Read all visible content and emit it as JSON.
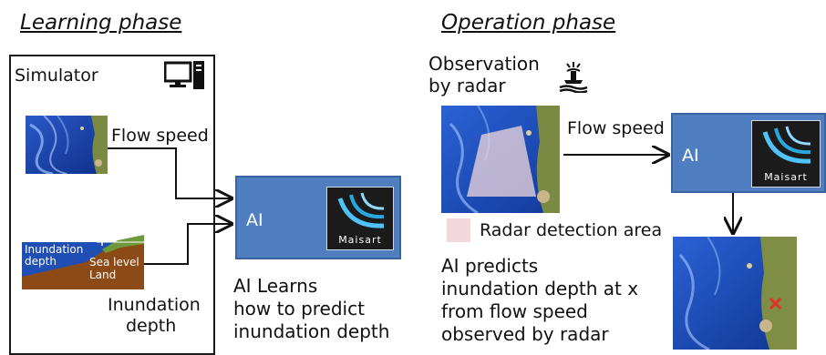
{
  "learning": {
    "heading": "Learning phase",
    "simulator_label": "Simulator",
    "flow_speed_label": "Flow speed",
    "terrain_depth_label": "Inundation depth",
    "terrain_sea_label": "Sea level",
    "terrain_land_label": "Land",
    "inundation_depth_label_line1": "Inundation",
    "inundation_depth_label_line2": "depth",
    "ai_label": "AI",
    "logo_text": "Maisart",
    "ai_learns_line1": "AI Learns",
    "ai_learns_line2": "how to predict",
    "ai_learns_line3": "inundation depth"
  },
  "operation": {
    "heading": "Operation phase",
    "observation_line1": "Observation",
    "observation_line2": "by radar",
    "flow_speed_label": "Flow speed",
    "ai_label": "AI",
    "logo_text": "Maisart",
    "legend_label": "Radar detection area",
    "predicts_line1": "AI predicts",
    "predicts_line2": "inundation depth at x",
    "predicts_line3": "from flow speed",
    "predicts_line4": "observed by radar"
  },
  "icons": [
    "computer-icon",
    "radar-icon",
    "maisart-logo-icon",
    "x-marker-icon"
  ],
  "colors": {
    "ai_box": "#4f7fc0",
    "sea": "#1f4fb5",
    "land_brown": "#8b4a16",
    "land_green": "#6f9a3a",
    "radar_area": "#f2d7dc",
    "marker": "#e0302a"
  }
}
